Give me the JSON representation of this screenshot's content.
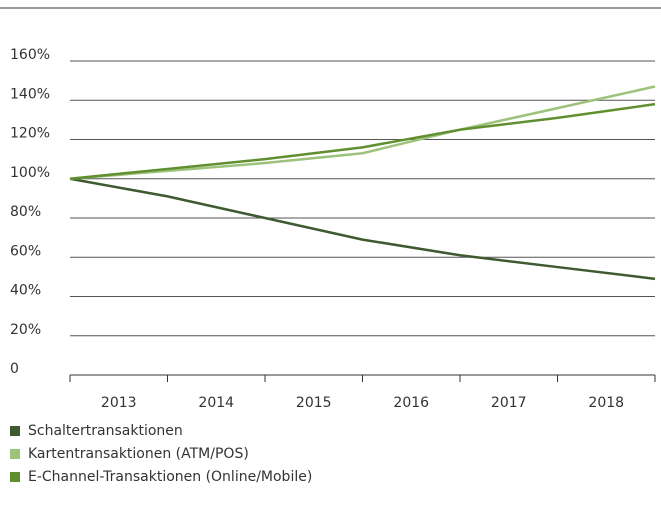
{
  "chart_data": {
    "type": "line",
    "x": [
      2012.5,
      2013.5,
      2014.5,
      2015.5,
      2016.5,
      2017.5,
      2018.5
    ],
    "xlim": [
      2012.5,
      2018.5
    ],
    "xticks": [
      2013,
      2014,
      2015,
      2016,
      2017,
      2018
    ],
    "ylim": [
      0,
      160
    ],
    "yticks": [
      0,
      {
        "value": 20,
        "label": "20%"
      },
      {
        "value": 40,
        "label": "40%"
      },
      {
        "value": 60,
        "label": "60%"
      },
      {
        "value": 80,
        "label": "80%"
      },
      {
        "value": 100,
        "label": "100%"
      },
      {
        "value": 120,
        "label": "120%"
      },
      {
        "value": 140,
        "label": "140%"
      },
      {
        "value": 160,
        "label": "160%"
      }
    ],
    "grid": true,
    "series": [
      {
        "name": "Schaltertransaktionen",
        "color": "#3f5a30",
        "values": [
          100,
          91,
          80,
          69,
          61,
          55,
          49
        ]
      },
      {
        "name": "Kartentransaktionen (ATM/POS)",
        "color": "#9dc27b",
        "values": [
          100,
          104,
          108,
          113,
          125,
          136,
          147
        ]
      },
      {
        "name": "E-Channel-Transaktionen (Online/Mobile)",
        "color": "#5f8f2f",
        "values": [
          100,
          105,
          110,
          116,
          125,
          131,
          138
        ]
      }
    ]
  }
}
